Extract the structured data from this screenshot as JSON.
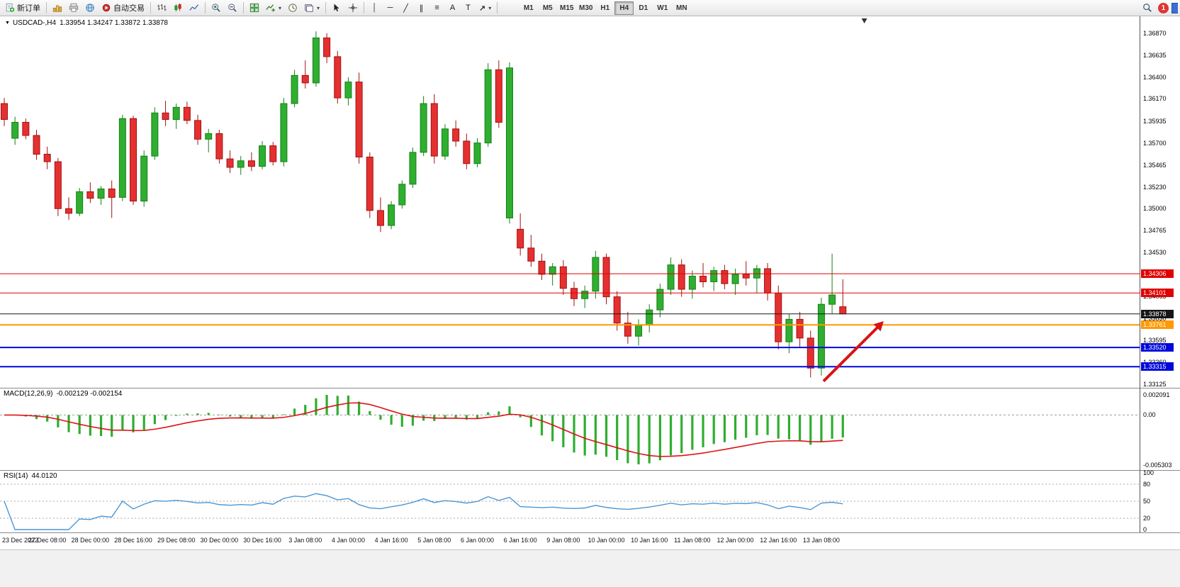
{
  "toolbar": {
    "new_order_label": "新订单",
    "autotrading_label": "自动交易",
    "timeframes": [
      "M1",
      "M5",
      "M15",
      "M30",
      "H1",
      "H4",
      "D1",
      "W1",
      "MN"
    ],
    "active_timeframe": "H4",
    "notification_count": "1"
  },
  "colors": {
    "up": "#2fae2f",
    "up_stroke": "#17801a",
    "down": "#e53030",
    "down_stroke": "#a31111",
    "macd_hist": "#2fae2f",
    "macd_signal": "#dd1414",
    "rsi_line": "#4a97d6",
    "arrow": "#d91414"
  },
  "chart_data": {
    "type": "candlestick",
    "symbol": "USDCAD-,H4",
    "ohlc_readout": "1.33954 1.34247 1.33872 1.33878",
    "price_range": {
      "max": 1.3705,
      "min": 1.3309
    },
    "price_axis_labels": [
      "1.36870",
      "1.36635",
      "1.36400",
      "1.36170",
      "1.35935",
      "1.35700",
      "1.35465",
      "1.35230",
      "1.35000",
      "1.34765",
      "1.34530",
      "1.34300",
      "1.34065",
      "1.33830",
      "1.33595",
      "1.33360",
      "1.33125"
    ],
    "time_labels": [
      "23 Dec 2022",
      "27 Dec 08:00",
      "28 Dec 00:00",
      "28 Dec 16:00",
      "29 Dec 08:00",
      "30 Dec 00:00",
      "30 Dec 16:00",
      "3 Jan 08:00",
      "4 Jan 00:00",
      "4 Jan 16:00",
      "5 Jan 08:00",
      "6 Jan 00:00",
      "6 Jan 16:00",
      "9 Jan 08:00",
      "10 Jan 00:00",
      "10 Jan 16:00",
      "11 Jan 08:00",
      "12 Jan 00:00",
      "12 Jan 16:00",
      "13 Jan 08:00"
    ],
    "label_every": 4,
    "candles": [
      [
        1.3612,
        1.3618,
        1.3588,
        1.3595
      ],
      [
        1.3575,
        1.3598,
        1.3568,
        1.3592
      ],
      [
        1.3592,
        1.3596,
        1.3574,
        1.3578
      ],
      [
        1.3578,
        1.3584,
        1.3552,
        1.3558
      ],
      [
        1.3558,
        1.3566,
        1.3542,
        1.355
      ],
      [
        1.355,
        1.3554,
        1.3492,
        1.35
      ],
      [
        1.35,
        1.3512,
        1.3488,
        1.3495
      ],
      [
        1.3495,
        1.3522,
        1.3492,
        1.3518
      ],
      [
        1.3518,
        1.3528,
        1.3506,
        1.3511
      ],
      [
        1.3511,
        1.3524,
        1.3504,
        1.3521
      ],
      [
        1.3521,
        1.353,
        1.349,
        1.3512
      ],
      [
        1.3512,
        1.36,
        1.3508,
        1.3596
      ],
      [
        1.3596,
        1.3599,
        1.3504,
        1.3508
      ],
      [
        1.3508,
        1.3562,
        1.3502,
        1.3556
      ],
      [
        1.3556,
        1.3608,
        1.3552,
        1.3602
      ],
      [
        1.3602,
        1.3615,
        1.3588,
        1.3595
      ],
      [
        1.3595,
        1.3612,
        1.3585,
        1.3608
      ],
      [
        1.3608,
        1.3614,
        1.359,
        1.3594
      ],
      [
        1.3594,
        1.36,
        1.3568,
        1.3574
      ],
      [
        1.3574,
        1.3585,
        1.356,
        1.358
      ],
      [
        1.358,
        1.3584,
        1.3548,
        1.3553
      ],
      [
        1.3553,
        1.3562,
        1.3538,
        1.3544
      ],
      [
        1.3544,
        1.3556,
        1.3536,
        1.3551
      ],
      [
        1.3551,
        1.356,
        1.354,
        1.3545
      ],
      [
        1.3545,
        1.3572,
        1.3542,
        1.3567
      ],
      [
        1.3567,
        1.3571,
        1.3546,
        1.355
      ],
      [
        1.355,
        1.3618,
        1.3545,
        1.3612
      ],
      [
        1.3612,
        1.3648,
        1.3608,
        1.3642
      ],
      [
        1.3642,
        1.3658,
        1.3628,
        1.3634
      ],
      [
        1.3634,
        1.3689,
        1.363,
        1.3682
      ],
      [
        1.3682,
        1.3687,
        1.3655,
        1.3662
      ],
      [
        1.3662,
        1.3668,
        1.3612,
        1.3618
      ],
      [
        1.3618,
        1.364,
        1.361,
        1.3635
      ],
      [
        1.3635,
        1.3645,
        1.3548,
        1.3555
      ],
      [
        1.3555,
        1.356,
        1.349,
        1.3498
      ],
      [
        1.3498,
        1.3512,
        1.3475,
        1.3482
      ],
      [
        1.3482,
        1.3508,
        1.3478,
        1.3504
      ],
      [
        1.3504,
        1.353,
        1.35,
        1.3526
      ],
      [
        1.3526,
        1.3565,
        1.3522,
        1.356
      ],
      [
        1.356,
        1.362,
        1.3556,
        1.3612
      ],
      [
        1.3612,
        1.3622,
        1.3548,
        1.3556
      ],
      [
        1.3556,
        1.359,
        1.3552,
        1.3585
      ],
      [
        1.3585,
        1.3594,
        1.3566,
        1.3572
      ],
      [
        1.3572,
        1.358,
        1.3542,
        1.3548
      ],
      [
        1.3548,
        1.3575,
        1.3544,
        1.357
      ],
      [
        1.357,
        1.3655,
        1.3566,
        1.3648
      ],
      [
        1.3648,
        1.3658,
        1.3586,
        1.3592
      ],
      [
        1.349,
        1.3656,
        1.3484,
        1.365
      ],
      [
        1.3478,
        1.3495,
        1.345,
        1.3458
      ],
      [
        1.3458,
        1.3472,
        1.3438,
        1.3444
      ],
      [
        1.3444,
        1.3452,
        1.3424,
        1.343
      ],
      [
        1.343,
        1.3442,
        1.3418,
        1.3438
      ],
      [
        1.3438,
        1.3445,
        1.3408,
        1.3415
      ],
      [
        1.3415,
        1.3422,
        1.3396,
        1.3404
      ],
      [
        1.3404,
        1.3418,
        1.3394,
        1.3412
      ],
      [
        1.3412,
        1.3455,
        1.3404,
        1.3448
      ],
      [
        1.3448,
        1.3452,
        1.3398,
        1.3406
      ],
      [
        1.3406,
        1.3412,
        1.337,
        1.3378
      ],
      [
        1.3378,
        1.339,
        1.3356,
        1.3364
      ],
      [
        1.3364,
        1.3382,
        1.3354,
        1.3376
      ],
      [
        1.3376,
        1.3398,
        1.3368,
        1.3392
      ],
      [
        1.3392,
        1.342,
        1.3384,
        1.3414
      ],
      [
        1.3414,
        1.3448,
        1.3408,
        1.344
      ],
      [
        1.344,
        1.3446,
        1.3406,
        1.3414
      ],
      [
        1.3414,
        1.3434,
        1.3404,
        1.3428
      ],
      [
        1.3428,
        1.3442,
        1.3416,
        1.3422
      ],
      [
        1.3422,
        1.3438,
        1.3412,
        1.3434
      ],
      [
        1.3434,
        1.344,
        1.3414,
        1.342
      ],
      [
        1.342,
        1.3436,
        1.3408,
        1.343
      ],
      [
        1.343,
        1.3444,
        1.3418,
        1.3426
      ],
      [
        1.3426,
        1.344,
        1.341,
        1.3436
      ],
      [
        1.3436,
        1.3442,
        1.3402,
        1.341
      ],
      [
        1.341,
        1.3418,
        1.335,
        1.3358
      ],
      [
        1.3358,
        1.3388,
        1.3346,
        1.3382
      ],
      [
        1.3382,
        1.339,
        1.3352,
        1.3362
      ],
      [
        1.3362,
        1.337,
        1.332,
        1.333
      ],
      [
        1.333,
        1.3405,
        1.3322,
        1.3398
      ],
      [
        1.3398,
        1.3452,
        1.3388,
        1.3408
      ],
      [
        1.33954,
        1.34247,
        1.33872,
        1.33878
      ]
    ],
    "levels": [
      {
        "name": "resistance-line-1",
        "price": 1.34306,
        "label": "1.34306",
        "color": "#e00000",
        "width": 1
      },
      {
        "name": "resistance-line-2",
        "price": 1.34101,
        "label": "1.34101",
        "color": "#e00000",
        "width": 1
      },
      {
        "name": "current-price-line",
        "price": 1.33878,
        "label": "1.33878",
        "color": "#161616",
        "width": 1
      },
      {
        "name": "pivot-line-orange",
        "price": 1.33761,
        "label": "1.33761",
        "color": "#ff9900",
        "width": 2
      },
      {
        "name": "support-line-1",
        "price": 1.3352,
        "label": "1.33520",
        "color": "#0008dd",
        "width": 2
      },
      {
        "name": "support-line-2",
        "price": 1.33315,
        "label": "1.33315",
        "color": "#0008dd",
        "width": 2
      }
    ],
    "annotations": {
      "arrow": {
        "from_index": 76.2,
        "from_price": 1.3316,
        "to_index": 81.8,
        "to_price": 1.338
      },
      "shift_marker_index": 80
    },
    "macd": {
      "label": "MACD(12,26,9)",
      "values": "-0.002129 -0.002154",
      "params": {
        "fast": 12,
        "slow": 26,
        "signal": 9
      },
      "axis": {
        "max": "0.002091",
        "zero": "0.00",
        "min": "-0.005303"
      }
    },
    "rsi": {
      "label": "RSI(14)",
      "value": "44.0120",
      "period": 14,
      "axis": [
        "100",
        "80",
        "50",
        "20",
        "0"
      ],
      "levels": [
        80,
        50,
        20
      ]
    }
  }
}
